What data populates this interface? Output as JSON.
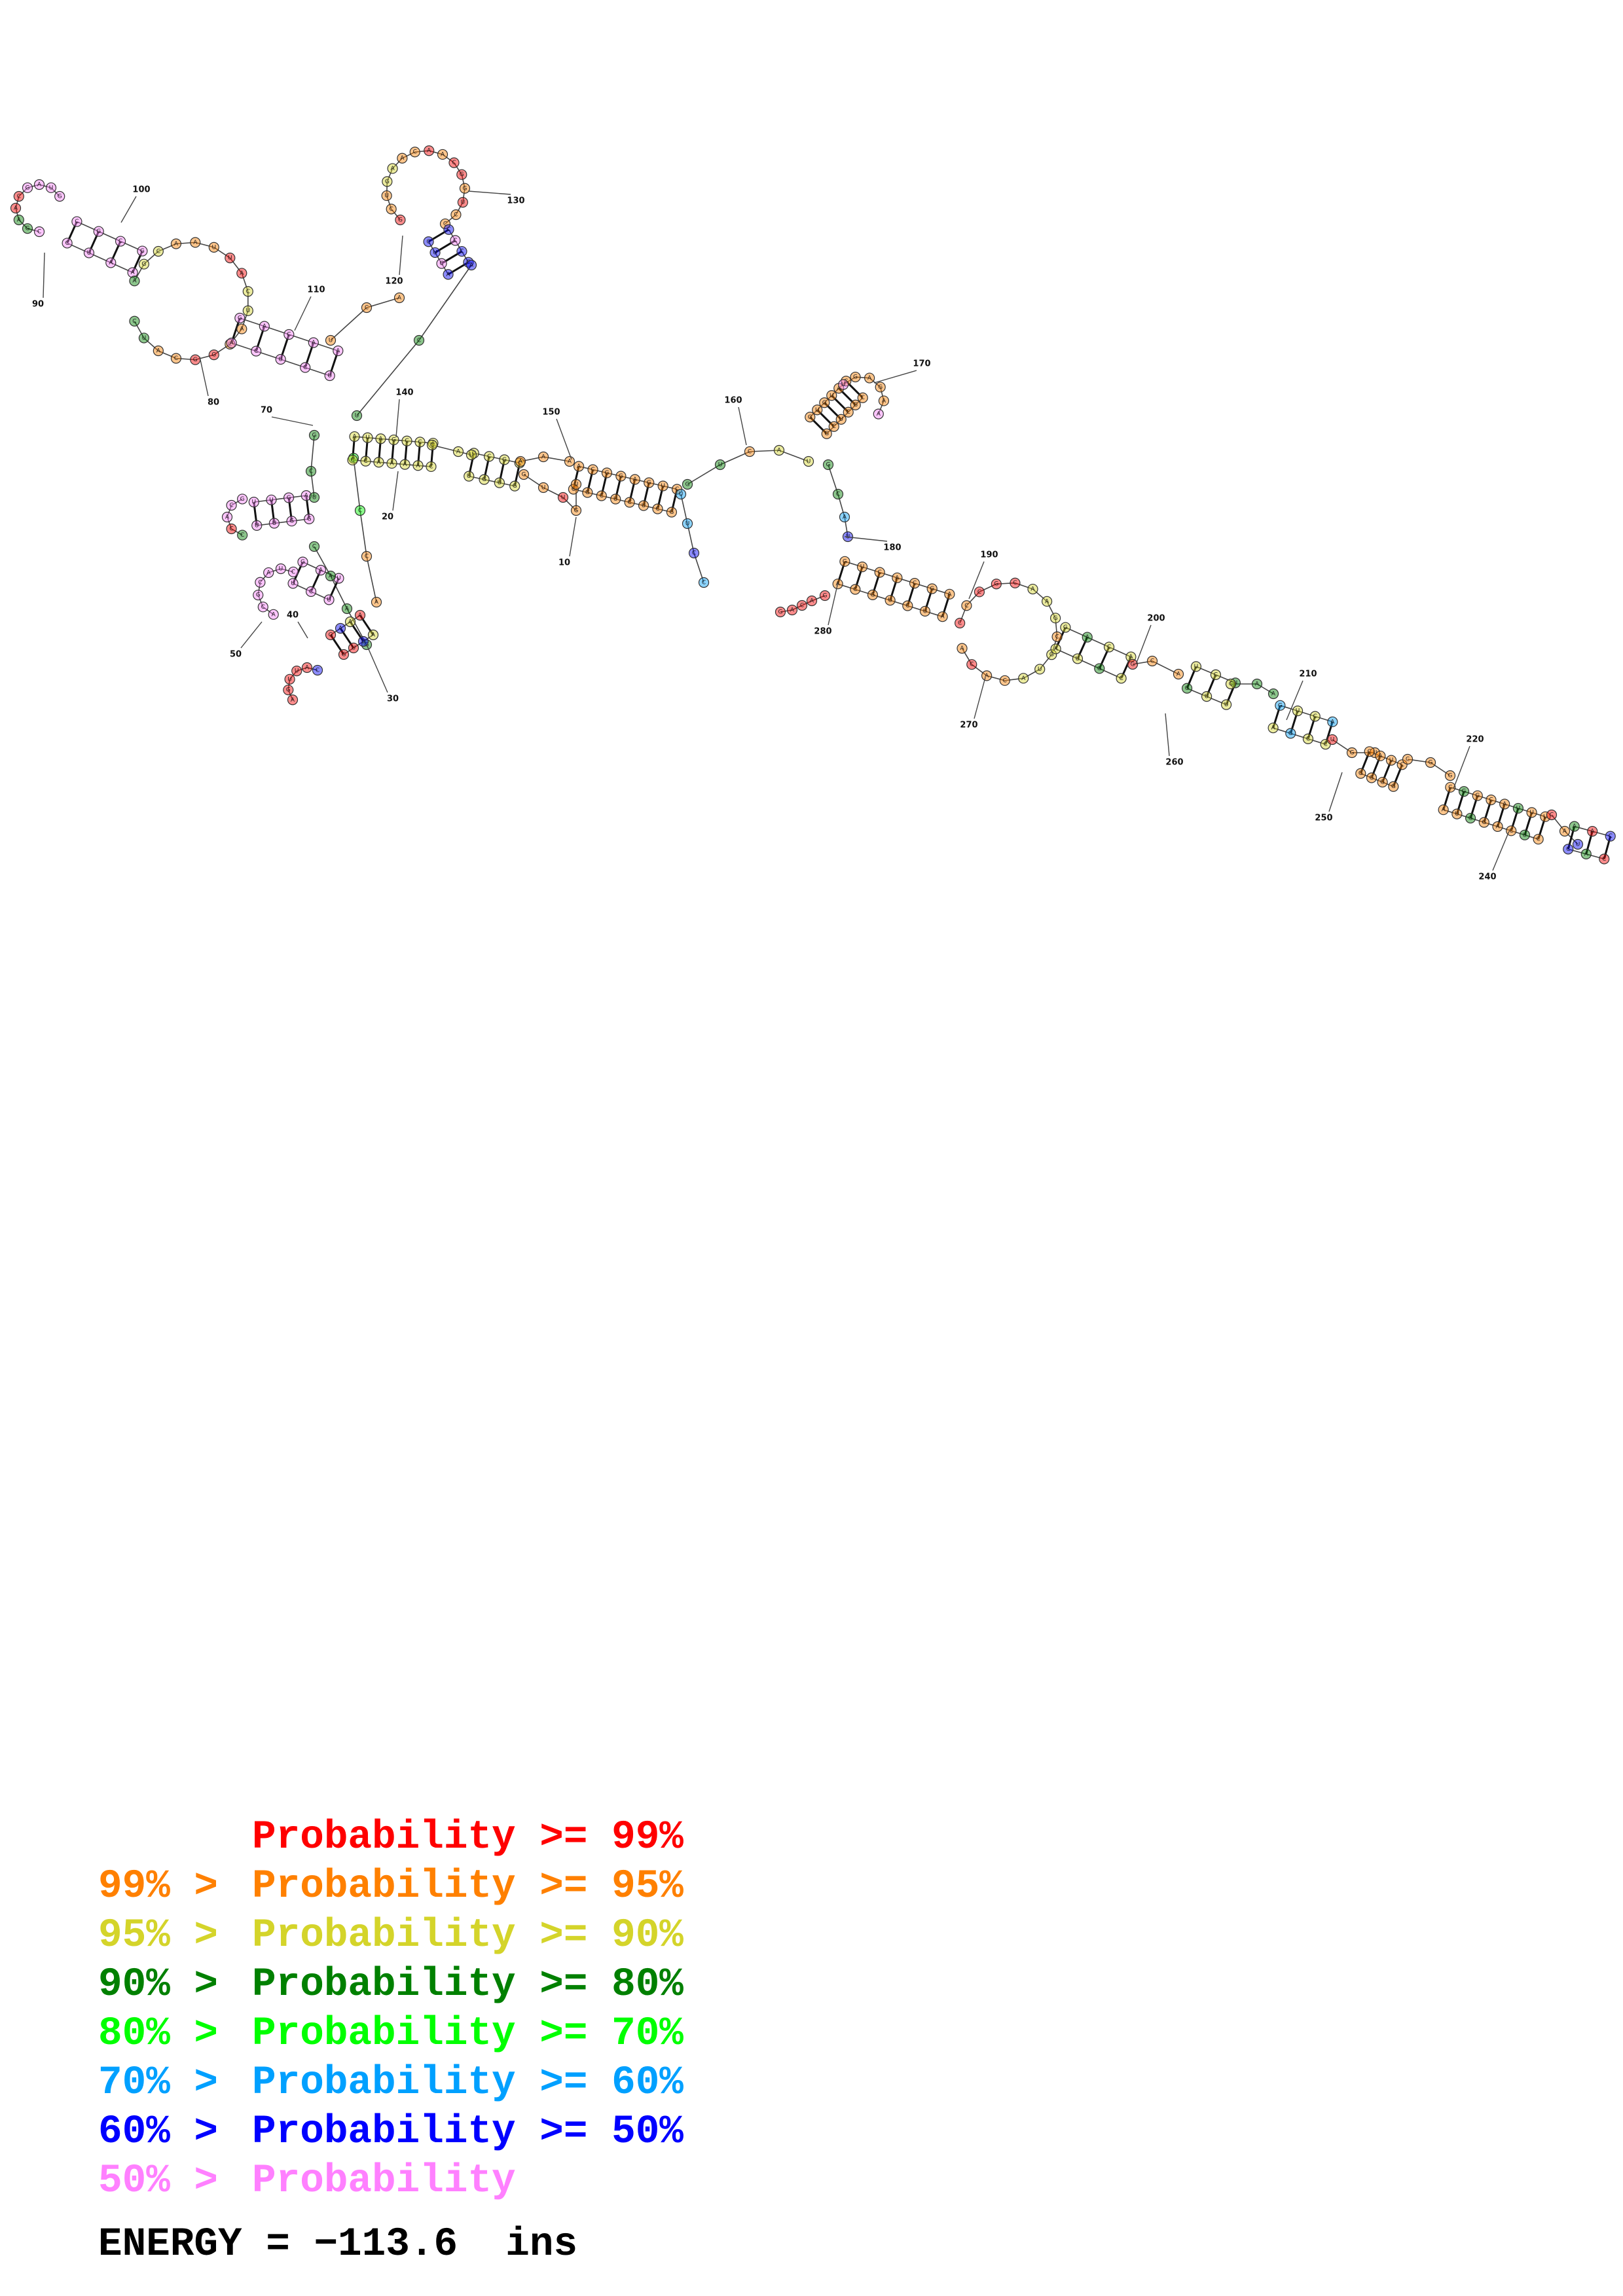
{
  "colors": {
    "p99": "#ff0000",
    "p95": "#ff8000",
    "p90": "#d4d42a",
    "p80": "#008000",
    "p70": "#00ff00",
    "p60": "#00a0ff",
    "p50": "#0000ff",
    "plow": "#ff80ff"
  },
  "position_labels": [
    "10",
    "20",
    "30",
    "40",
    "50",
    "70",
    "80",
    "90",
    "100",
    "110",
    "120",
    "130",
    "140",
    "150",
    "160",
    "170",
    "180",
    "190",
    "200",
    "210",
    "220",
    "240",
    "250",
    "260",
    "270",
    "280"
  ],
  "legend": [
    {
      "left": "",
      "mid": "Probability >= 99%",
      "color_key": "p99"
    },
    {
      "left": "99% >",
      "mid": "Probability >= 95%",
      "color_key": "p95"
    },
    {
      "left": "95% >",
      "mid": "Probability >= 90%",
      "color_key": "p90"
    },
    {
      "left": "90% >",
      "mid": "Probability >= 80%",
      "color_key": "p80"
    },
    {
      "left": "80% >",
      "mid": "Probability >= 70%",
      "color_key": "p70"
    },
    {
      "left": "70% >",
      "mid": "Probability >= 60%",
      "color_key": "p60"
    },
    {
      "left": "60% >",
      "mid": "Probability >= 50%",
      "color_key": "p50"
    },
    {
      "left": "50% >",
      "mid": "Probability",
      "color_key": "plow"
    }
  ],
  "energy": "ENERGY = −113.6  ins"
}
